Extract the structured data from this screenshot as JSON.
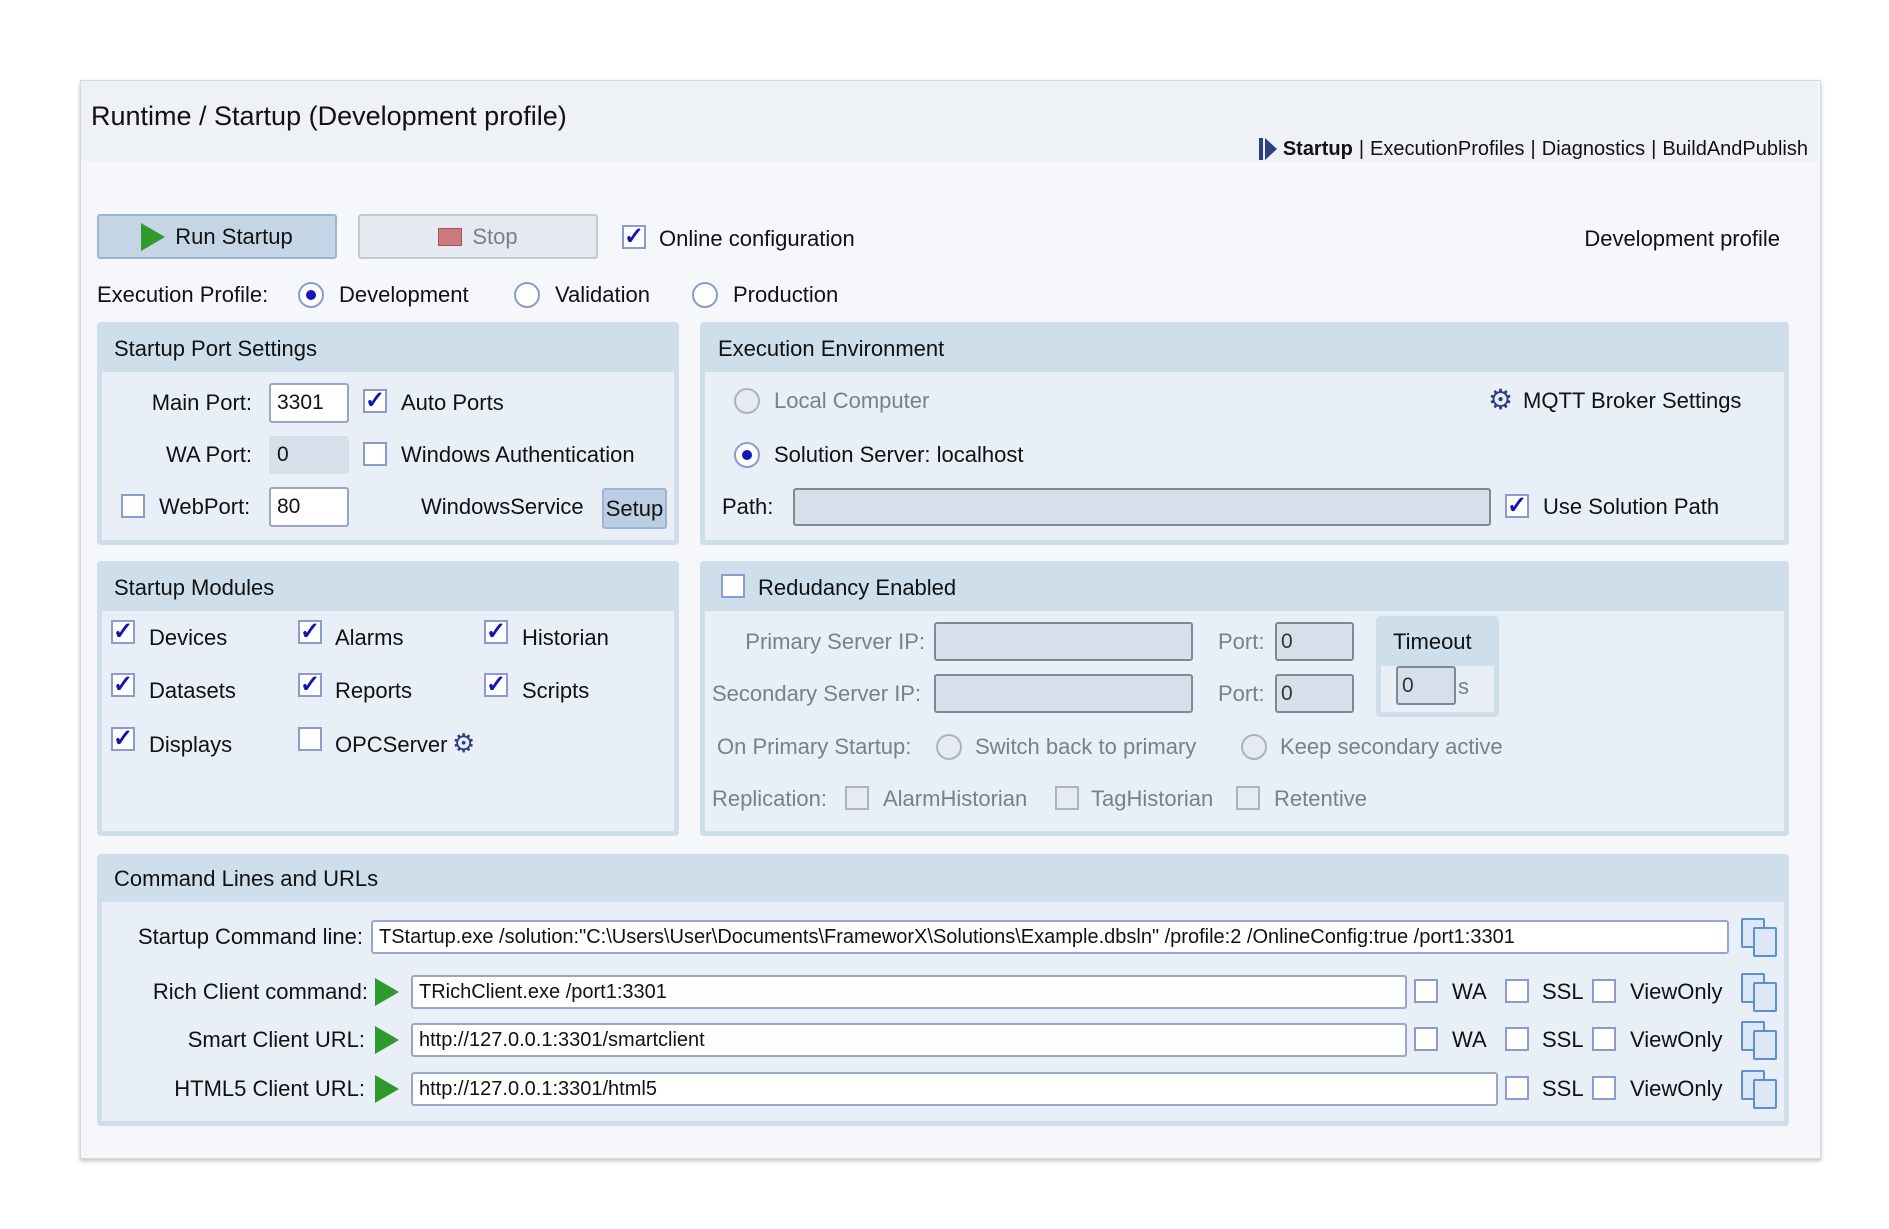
{
  "window": {
    "title": "Runtime / Startup (Development profile)"
  },
  "nav": {
    "items": [
      {
        "label": "Startup",
        "active": true
      },
      {
        "label": "ExecutionProfiles"
      },
      {
        "label": "Diagnostics"
      },
      {
        "label": "BuildAndPublish"
      }
    ],
    "separator": "|"
  },
  "toolbar": {
    "run_label": "Run Startup",
    "stop_label": "Stop",
    "online_config_label": "Online configuration",
    "online_config_checked": true,
    "profile_status": "Development profile"
  },
  "execution_profile": {
    "label": "Execution Profile:",
    "options": [
      "Development",
      "Validation",
      "Production"
    ],
    "selected": "Development"
  },
  "port_settings": {
    "title": "Startup Port Settings",
    "main_port_label": "Main Port:",
    "main_port": "3301",
    "auto_ports_label": "Auto Ports",
    "auto_ports": true,
    "wa_port_label": "WA Port:",
    "wa_port": "0",
    "windows_auth_label": "Windows Authentication",
    "windows_auth": false,
    "webport_label": "WebPort:",
    "webport": "80",
    "webport_enabled": false,
    "windows_service_label": "WindowsService",
    "setup_label": "Setup"
  },
  "environment": {
    "title": "Execution Environment",
    "local_label": "Local Computer",
    "server_label": "Solution Server:",
    "server_value": "localhost",
    "mqtt_label": "MQTT Broker Settings",
    "path_label": "Path:",
    "path_value": "",
    "use_solution_path_label": "Use Solution Path",
    "use_solution_path": true
  },
  "modules": {
    "title": "Startup Modules",
    "items": [
      {
        "label": "Devices",
        "checked": true
      },
      {
        "label": "Alarms",
        "checked": true
      },
      {
        "label": "Historian",
        "checked": true
      },
      {
        "label": "Datasets",
        "checked": true
      },
      {
        "label": "Reports",
        "checked": true
      },
      {
        "label": "Scripts",
        "checked": true
      },
      {
        "label": "Displays",
        "checked": true
      },
      {
        "label": "OPCServer",
        "checked": false
      }
    ]
  },
  "redundancy": {
    "enabled_label": "Redudancy Enabled",
    "enabled": false,
    "primary_ip_label": "Primary Server IP:",
    "primary_ip": "",
    "secondary_ip_label": "Secondary Server IP:",
    "secondary_ip": "",
    "port_label": "Port:",
    "primary_port": "0",
    "secondary_port": "0",
    "timeout_label": "Timeout",
    "timeout": "0",
    "timeout_unit": "s",
    "on_primary_label": "On Primary Startup:",
    "switch_back_label": "Switch back to primary",
    "keep_secondary_label": "Keep secondary active",
    "replication_label": "Replication:",
    "replication": [
      "AlarmHistorian",
      "TagHistorian",
      "Retentive"
    ]
  },
  "commands": {
    "title": "Command Lines and URLs",
    "startup_label": "Startup Command line:",
    "startup_value": "TStartup.exe /solution:\"C:\\Users\\User\\Documents\\FrameworX\\Solutions\\Example.dbsln\" /profile:2 /OnlineConfig:true /port1:3301",
    "rich_label": "Rich Client command:",
    "rich_value": "TRichClient.exe  /port1:3301",
    "smart_label": "Smart Client URL:",
    "smart_value": "http://127.0.0.1:3301/smartclient",
    "html5_label": "HTML5 Client URL:",
    "html5_value": "http://127.0.0.1:3301/html5",
    "wa": "WA",
    "ssl": "SSL",
    "viewonly": "ViewOnly"
  },
  "colors": {
    "panel_header": "#cfdeeb",
    "panel_body": "#e9eff7",
    "check": "#1313b0",
    "play": "#2f9a2a",
    "accent": "#2b3f84"
  }
}
